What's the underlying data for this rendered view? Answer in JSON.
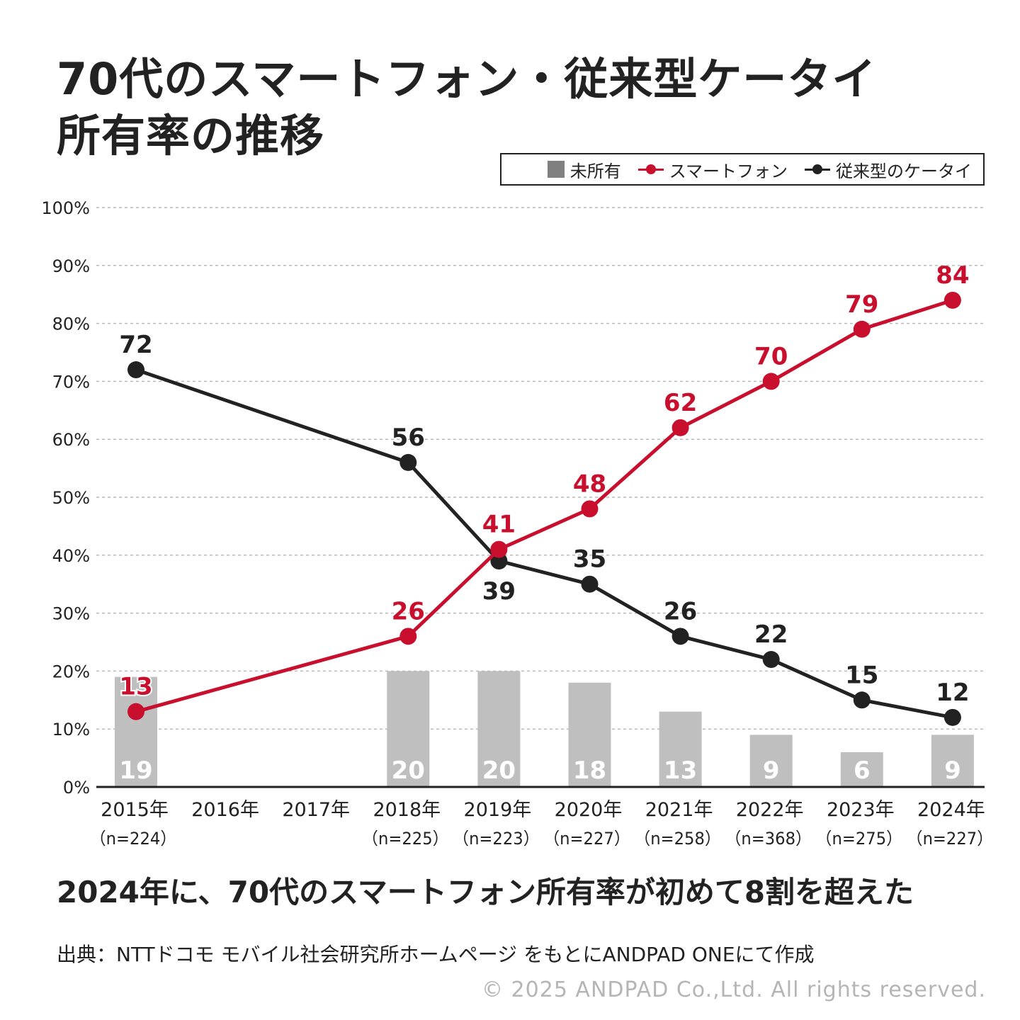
{
  "title_line1": "70代のスマートフォン・従来型ケータイ",
  "title_line2": "所有率の推移",
  "legend": {
    "unowned": "未所有",
    "smartphone": "スマートフォン",
    "feature_phone": "従来型のケータイ"
  },
  "colors": {
    "smartphone": "#c8102e",
    "feature_phone": "#222222",
    "unowned": "#bfbfbf",
    "legend_unowned": "#808080",
    "grid": "#bbbbbb"
  },
  "chart_data": {
    "type": "line",
    "categories": [
      "2015年",
      "2016年",
      "2017年",
      "2018年",
      "2019年",
      "2020年",
      "2021年",
      "2022年",
      "2023年",
      "2024年"
    ],
    "sample_sizes": [
      "（n=224）",
      "",
      "",
      "（n=225）",
      "（n=223）",
      "（n=227）",
      "（n=258）",
      "（n=368）",
      "（n=275）",
      "（n=227）"
    ],
    "y_ticks": [
      "0%",
      "10%",
      "20%",
      "30%",
      "40%",
      "50%",
      "60%",
      "70%",
      "80%",
      "90%",
      "100%"
    ],
    "ylim": [
      0,
      100
    ],
    "grid": true,
    "legend_position": "top-right",
    "series": [
      {
        "name": "スマートフォン",
        "type": "line",
        "values": [
          13,
          null,
          null,
          26,
          41,
          48,
          62,
          70,
          79,
          84
        ],
        "labels": [
          "13",
          "",
          "",
          "26",
          "41",
          "48",
          "62",
          "70",
          "79",
          "84"
        ]
      },
      {
        "name": "従来型のケータイ",
        "type": "line",
        "values": [
          72,
          null,
          null,
          56,
          39,
          35,
          26,
          22,
          15,
          12
        ],
        "labels": [
          "72",
          "",
          "",
          "56",
          "39",
          "35",
          "26",
          "22",
          "15",
          "12"
        ]
      },
      {
        "name": "未所有",
        "type": "bar",
        "values": [
          19,
          null,
          null,
          20,
          20,
          18,
          13,
          9,
          6,
          9
        ],
        "labels": [
          "19",
          "",
          "",
          "20",
          "20",
          "18",
          "13",
          "9",
          "6",
          "9"
        ]
      }
    ]
  },
  "conclusion": "2024年に、70代のスマートフォン所有率が初めて8割を超えた",
  "source": "出典：NTTドコモ モバイル社会研究所ホームページ をもとにANDPAD ONEにて作成",
  "copyright": "© 2025 ANDPAD Co.,Ltd. All rights reserved."
}
